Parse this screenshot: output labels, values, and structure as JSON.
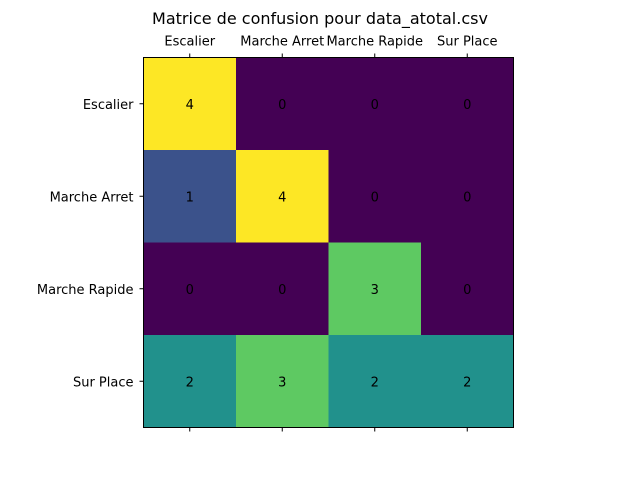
{
  "chart_data": {
    "type": "heatmap",
    "title": "Matrice de confusion pour data_atotal.csv",
    "x_categories": [
      "Escalier",
      "Marche Arret",
      "Marche Rapide",
      "Sur Place"
    ],
    "y_categories": [
      "Escalier",
      "Marche Arret",
      "Marche Rapide",
      "Sur Place"
    ],
    "x_tick_position": "top",
    "values": [
      [
        4,
        0,
        0,
        0
      ],
      [
        1,
        4,
        0,
        0
      ],
      [
        0,
        0,
        3,
        0
      ],
      [
        2,
        3,
        2,
        2
      ]
    ],
    "value_range": [
      0,
      4
    ],
    "colormap": "viridis",
    "grid": false
  }
}
